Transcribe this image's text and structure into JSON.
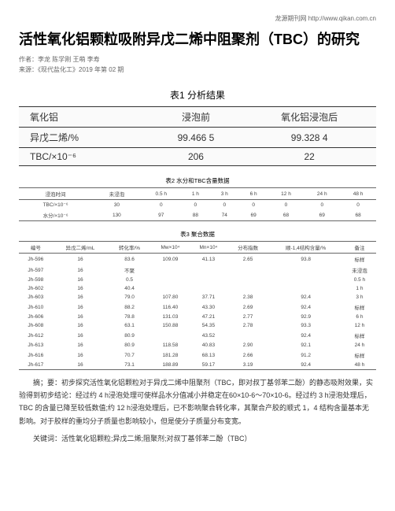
{
  "header_link": "龙源期刊网 http://www.qikan.com.cn",
  "title": "活性氧化铝颗粒吸附异戊二烯中阻聚剂（TBC）的研究",
  "authors": "作者：李龙 陈学刚 王萌 李寿",
  "source": "来源：《现代盐化工》2019 年第 02 期",
  "table1": {
    "caption": "表1 分析结果",
    "headers": [
      "氧化铝",
      "浸泡前",
      "氧化铝浸泡后"
    ],
    "rows": [
      [
        "异戊二烯/%",
        "99.466 5",
        "99.328 4"
      ],
      [
        "TBC/×10⁻⁶",
        "206",
        "22"
      ]
    ]
  },
  "table2": {
    "caption": "表2 水分和TBC含量数据",
    "headers": [
      "浸泡时间",
      "未浸泡",
      "0.5 h",
      "1 h",
      "3 h",
      "6 h",
      "12 h",
      "24 h",
      "48 h"
    ],
    "rows": [
      [
        "TBC/×10⁻⁶",
        "30",
        "0",
        "0",
        "0",
        "0",
        "0",
        "0",
        "0"
      ],
      [
        "水分/×10⁻⁶",
        "130",
        "97",
        "88",
        "74",
        "69",
        "68",
        "69",
        "68"
      ]
    ]
  },
  "table3": {
    "caption": "表3 聚合数据",
    "headers": [
      "编号",
      "异戊二烯/mL",
      "转化率/%",
      "Mw×10⁴",
      "Mn×10⁴",
      "分布指数",
      "顺-1,4结构含量/%",
      "备注"
    ],
    "rows": [
      [
        "Jh-596",
        "16",
        "83.6",
        "109.09",
        "41.13",
        "2.65",
        "93.8",
        "标样"
      ],
      [
        "Jh-597",
        "16",
        "不聚",
        "",
        "",
        "",
        "",
        "未浸泡"
      ],
      [
        "Jh-598",
        "16",
        "0.5",
        "",
        "",
        "",
        "",
        "0.5 h"
      ],
      [
        "Jh-602",
        "16",
        "40.4",
        "",
        "",
        "",
        "",
        "1 h"
      ],
      [
        "Jh-603",
        "16",
        "79.0",
        "107.80",
        "37.71",
        "2.38",
        "92.4",
        "3 h"
      ],
      [
        "Jh-610",
        "16",
        "88.2",
        "116.40",
        "43.30",
        "2.69",
        "92.4",
        "标样"
      ],
      [
        "Jh-606",
        "16",
        "78.8",
        "131.03",
        "47.21",
        "2.77",
        "92.9",
        "6 h"
      ],
      [
        "Jh-608",
        "16",
        "63.1",
        "150.88",
        "54.35",
        "2.78",
        "93.3",
        "12 h"
      ],
      [
        "Jh-612",
        "16",
        "80.9",
        "",
        "43.52",
        "",
        "92.4",
        "标样"
      ],
      [
        "Jh-613",
        "16",
        "80.9",
        "118.58",
        "40.83",
        "2.90",
        "92.1",
        "24 h"
      ],
      [
        "Jh-616",
        "16",
        "70.7",
        "181.28",
        "68.13",
        "2.66",
        "91.2",
        "标样"
      ],
      [
        "Jh-617",
        "16",
        "73.1",
        "188.89",
        "59.17",
        "3.19",
        "92.4",
        "48 h"
      ]
    ]
  },
  "abstract": "摘；要：初步探究活性氧化铝颗粒对于异戊二烯中阻聚剂（TBC，即对叔丁基邻苯二酚）的静态吸附效果，实验得到初步结论：经过约 4 h浸泡处理可使样品水分值减小并稳定在60×10-6～70×10-6。经过约 3 h浸泡处理后，TBC 的含量已降至较低数值;约 12 h浸泡处理后，已不影响聚合转化率，其聚合产胶的顺式 1，4 结构含量基本无影响。对于胶样的重均分子质量也影响较小，但是使分子质量分布变宽。",
  "keywords": "关键词：活性氧化铝颗粒;异戊二烯;阻聚剂;对叔丁基邻苯二酚（TBC）"
}
